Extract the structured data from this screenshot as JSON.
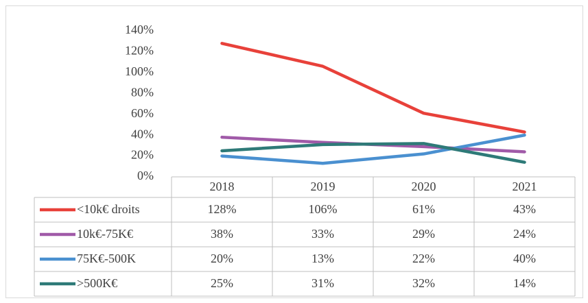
{
  "chart_data": {
    "type": "line",
    "categories": [
      "2018",
      "2019",
      "2020",
      "2021"
    ],
    "series": [
      {
        "name": "<10k€ droits",
        "color": "#e8413a",
        "values": [
          128,
          106,
          61,
          43
        ],
        "value_labels": [
          "128%",
          "106%",
          "61%",
          "43%"
        ]
      },
      {
        "name": "10k€-75K€",
        "color": "#a05aa8",
        "values": [
          38,
          33,
          29,
          24
        ],
        "value_labels": [
          "38%",
          "33%",
          "29%",
          "24%"
        ]
      },
      {
        "name": "75K€-500K",
        "color": "#4a90d0",
        "values": [
          20,
          13,
          22,
          40
        ],
        "value_labels": [
          "20%",
          "13%",
          "22%",
          "40%"
        ]
      },
      {
        "name": ">500K€",
        "color": "#2e7a78",
        "values": [
          25,
          31,
          32,
          14
        ],
        "value_labels": [
          "25%",
          "31%",
          "32%",
          "14%"
        ]
      }
    ],
    "ylim": [
      0,
      140
    ],
    "yticks": [
      {
        "value": 0,
        "label": "0%"
      },
      {
        "value": 20,
        "label": "20%"
      },
      {
        "value": 40,
        "label": "40%"
      },
      {
        "value": 60,
        "label": "60%"
      },
      {
        "value": 80,
        "label": "80%"
      },
      {
        "value": 100,
        "label": "100%"
      },
      {
        "value": 120,
        "label": "120%"
      },
      {
        "value": 140,
        "label": "140%"
      }
    ],
    "grid": false,
    "legend": "table"
  }
}
